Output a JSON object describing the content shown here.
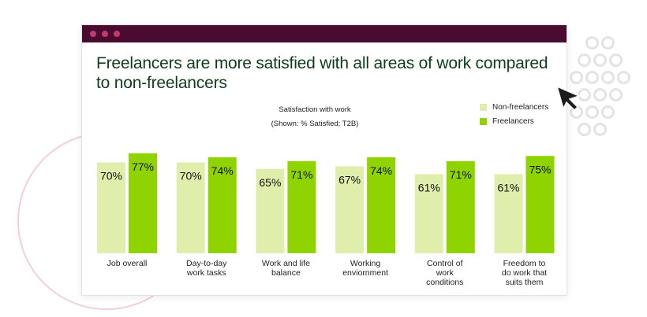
{
  "window": {
    "titlebar_color": "#4a0b31",
    "dot_color": "#c23a6a"
  },
  "headline": "Freelancers are more satisfied with all areas of work compared to non-freelancers",
  "subtitle": {
    "line1": "Satisfaction with work",
    "line2": "(Shown: % Satisfied; T2B)"
  },
  "chart_data": {
    "type": "bar",
    "title": "Freelancers are more satisfied with all areas of work compared to non-freelancers",
    "subtitle": "Satisfaction with work (Shown: % Satisfied; T2B)",
    "categories": [
      [
        "Job overall"
      ],
      [
        "Day-to-day",
        "work tasks"
      ],
      [
        "Work and life",
        "balance"
      ],
      [
        "Working",
        "enviornment"
      ],
      [
        "Control of",
        "work",
        "conditions"
      ],
      [
        "Freedom to",
        "do work that",
        "suits them"
      ]
    ],
    "series": [
      {
        "name": "Non-freelancers",
        "color": "#dfeeab",
        "values": [
          70,
          70,
          65,
          67,
          61,
          61
        ]
      },
      {
        "name": "Freelancers",
        "color": "#8fd400",
        "values": [
          77,
          74,
          71,
          74,
          71,
          75
        ]
      }
    ],
    "value_suffix": "%",
    "ylim": [
      0,
      100
    ],
    "grid": false,
    "legend_position": "top-right"
  }
}
